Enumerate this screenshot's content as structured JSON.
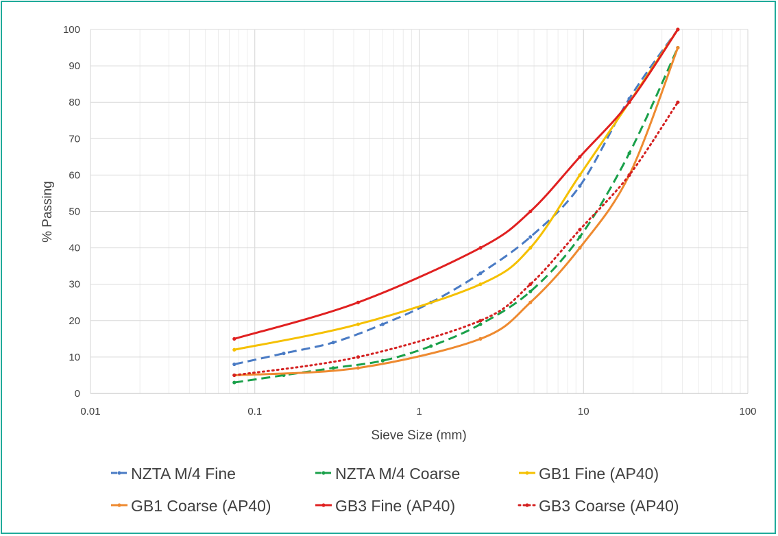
{
  "chart_data": {
    "type": "line",
    "title": "",
    "xlabel": "Sieve Size (mm)",
    "ylabel": "% Passing",
    "xscale": "log",
    "xlim": [
      0.01,
      100
    ],
    "ylim": [
      0,
      100
    ],
    "x_ticks": [
      0.01,
      0.1,
      1,
      10,
      100
    ],
    "x_tick_labels": [
      "0.01",
      "0.1",
      "1",
      "10",
      "100"
    ],
    "y_ticks": [
      0,
      10,
      20,
      30,
      40,
      50,
      60,
      70,
      80,
      90,
      100
    ],
    "y_tick_labels": [
      "0",
      "10",
      "20",
      "30",
      "40",
      "50",
      "60",
      "70",
      "80",
      "90",
      "100"
    ],
    "grid": true,
    "legend_position": "bottom",
    "series": [
      {
        "name": "NZTA M/4 Fine",
        "color": "#4a7bc4",
        "dash": "dashed",
        "x": [
          0.075,
          0.15,
          0.3,
          0.6,
          1.18,
          2.36,
          4.75,
          9.5,
          19,
          37.5
        ],
        "y": [
          8,
          11,
          14,
          19,
          25,
          33,
          43,
          57,
          81,
          100
        ]
      },
      {
        "name": "NZTA M/4 Coarse",
        "color": "#1aa04a",
        "dash": "dashed",
        "x": [
          0.075,
          0.15,
          0.3,
          0.6,
          1.18,
          2.36,
          4.75,
          9.5,
          19,
          37.5
        ],
        "y": [
          3,
          5,
          7,
          9,
          13,
          19,
          28,
          43,
          66,
          95
        ]
      },
      {
        "name": "GB1 Fine (AP40)",
        "color": "#f5c000",
        "dash": "solid",
        "x": [
          0.075,
          0.425,
          2.36,
          4.75,
          9.5,
          19,
          37.5
        ],
        "y": [
          12,
          19,
          30,
          40,
          60,
          80,
          100
        ]
      },
      {
        "name": "GB1 Coarse (AP40)",
        "color": "#ee8a30",
        "dash": "solid",
        "x": [
          0.075,
          0.425,
          2.36,
          4.75,
          9.5,
          19,
          37.5
        ],
        "y": [
          5,
          7,
          15,
          25,
          40,
          60,
          95
        ]
      },
      {
        "name": "GB3 Fine (AP40)",
        "color": "#e02020",
        "dash": "solid",
        "x": [
          0.075,
          0.425,
          2.36,
          4.75,
          9.5,
          19,
          37.5
        ],
        "y": [
          15,
          25,
          40,
          50,
          65,
          80,
          100
        ]
      },
      {
        "name": "GB3 Coarse (AP40)",
        "color": "#d42020",
        "dash": "dotted",
        "x": [
          0.075,
          0.425,
          2.36,
          4.75,
          9.5,
          19,
          37.5
        ],
        "y": [
          5,
          10,
          20,
          30,
          45,
          60,
          80
        ]
      }
    ]
  }
}
